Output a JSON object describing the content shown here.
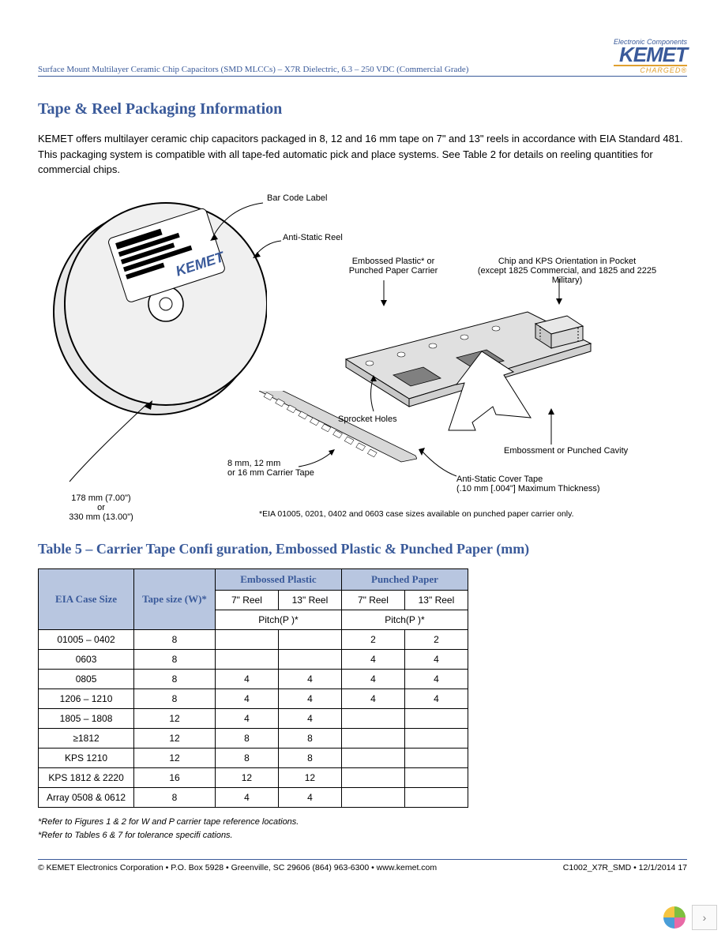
{
  "header": {
    "doc_title": "Surface Mount Multilayer Ceramic Chip Capacitors (SMD MLCCs) – X7R Dielectric, 6.3 – 250 VDC (Commercial Grade)",
    "logo_tagline": "Electronic Components",
    "logo_main": "KEMET",
    "logo_sub": "CHARGED®"
  },
  "section": {
    "title": "Tape & Reel Packaging Information",
    "paragraph": "KEMET offers multilayer ceramic chip capacitors packaged in 8, 12 and 16 mm tape on 7\" and 13\" reels in accordance with EIA Standard 481. This packaging system is compatible with all tape-fed automatic pick and place systems. See Table 2 for details on reeling quantities for commercial chips."
  },
  "diagram": {
    "bar_code_label": "Bar Code Label",
    "anti_static_reel": "Anti-Static Reel",
    "embossed_carrier": "Embossed Plastic* or\nPunched Paper Carrier",
    "chip_orientation": "Chip and KPS Orientation in Pocket\n(except 1825 Commercial, and 1825 and 2225 Military)",
    "sprocket_holes": "Sprocket Holes",
    "embossment_cavity": "Embossment or Punched Cavity",
    "carrier_tape_size": "8 mm, 12 mm\nor 16 mm Carrier Tape",
    "anti_static_cover": "Anti-Static Cover Tape\n(.10 mm [.004\"] Maximum Thickness)",
    "reel_dim": "178 mm (7.00\")\nor\n330 mm (13.00\")",
    "footnote": "*EIA 01005, 0201, 0402 and 0603 case sizes available on punched paper carrier only.",
    "kemet_stamp": "KEMET"
  },
  "table5": {
    "title": "Table 5 – Carrier Tape Confi guration, Embossed Plastic & Punched Paper (mm)",
    "col_case_size": "EIA Case Size",
    "col_tape_size": "Tape size (W)*",
    "col_embossed": "Embossed Plastic",
    "col_punched": "Punched Paper",
    "col_7reel": "7\" Reel",
    "col_13reel": "13\" Reel",
    "col_pitch": "Pitch(P  )*",
    "rows": [
      {
        "case": "01005 – 0402",
        "tape": "8",
        "e7": "",
        "e13": "",
        "p7": "2",
        "p13": "2"
      },
      {
        "case": "0603",
        "tape": "8",
        "e7": "",
        "e13": "",
        "p7": "4",
        "p13": "4"
      },
      {
        "case": "0805",
        "tape": "8",
        "e7": "4",
        "e13": "4",
        "p7": "4",
        "p13": "4"
      },
      {
        "case": "1206 – 1210",
        "tape": "8",
        "e7": "4",
        "e13": "4",
        "p7": "4",
        "p13": "4"
      },
      {
        "case": "1805 – 1808",
        "tape": "12",
        "e7": "4",
        "e13": "4",
        "p7": "",
        "p13": ""
      },
      {
        "case": "≥1812",
        "tape": "12",
        "e7": "8",
        "e13": "8",
        "p7": "",
        "p13": ""
      },
      {
        "case": "KPS 1210",
        "tape": "12",
        "e7": "8",
        "e13": "8",
        "p7": "",
        "p13": ""
      },
      {
        "case": "KPS 1812 & 2220",
        "tape": "16",
        "e7": "12",
        "e13": "12",
        "p7": "",
        "p13": ""
      },
      {
        "case": "Array 0508 & 0612",
        "tape": "8",
        "e7": "4",
        "e13": "4",
        "p7": "",
        "p13": ""
      }
    ],
    "footnote1": "*Refer to Figures 1 & 2 for W and P    carrier tape reference locations.",
    "footnote2": "*Refer to Tables 6 & 7 for tolerance specifi cations."
  },
  "footer": {
    "left": "© KEMET Electronics Corporation • P.O. Box 5928 • Greenville, SC 29606 (864) 963-6300 • www.kemet.com",
    "right": "C1002_X7R_SMD • 12/1/2014  17"
  },
  "pager": {
    "next": "›",
    "icon_colors": [
      "#f5c542",
      "#7fbf3f",
      "#4a9ed8",
      "#e86aa6"
    ]
  },
  "colors": {
    "brand_blue": "#3a5a9a",
    "brand_gold": "#e0a030",
    "table_header_bg": "#b8c6e0"
  }
}
